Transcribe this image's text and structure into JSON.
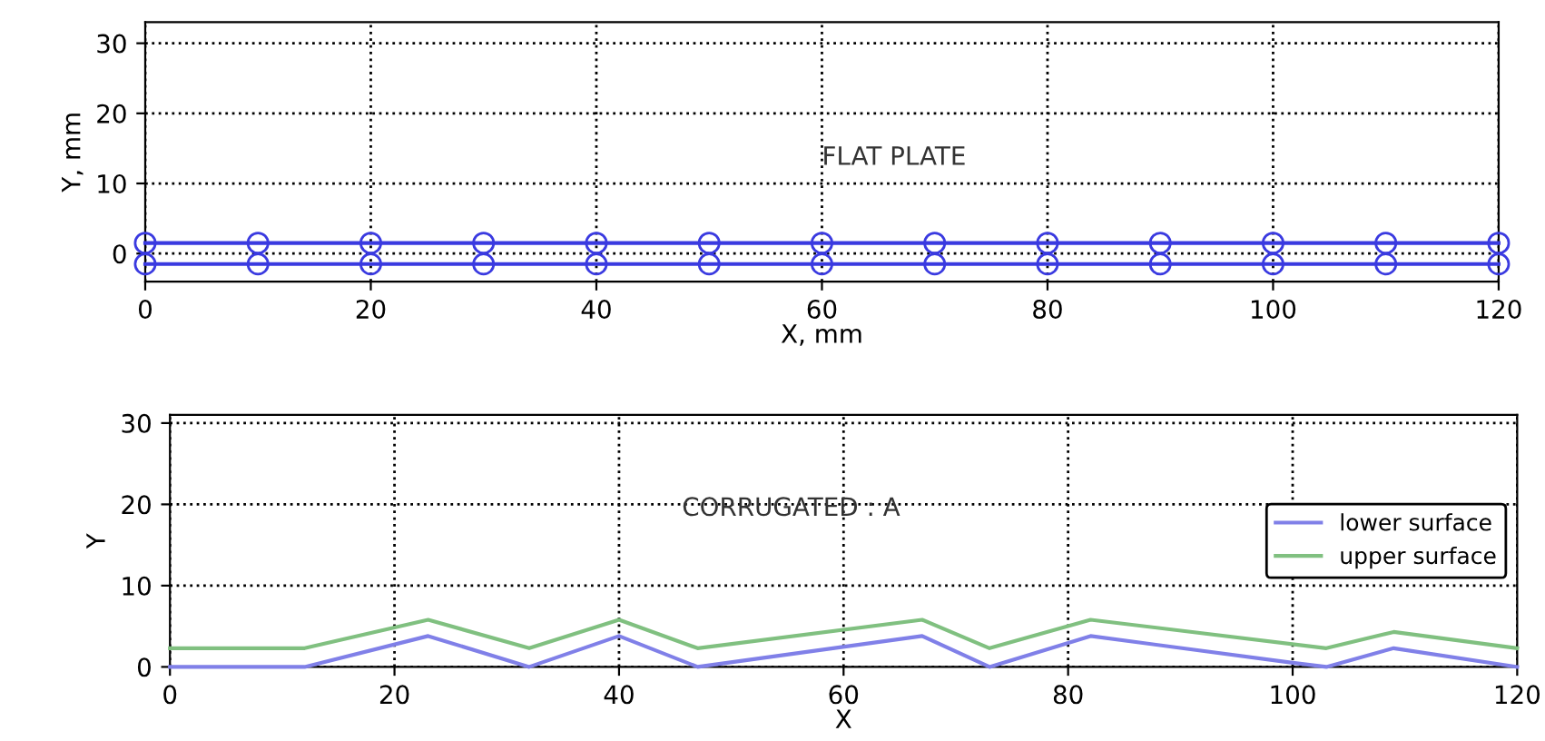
{
  "chart_data": [
    {
      "type": "line",
      "xlabel": "X, mm",
      "ylabel": "Y, mm",
      "annotations": [
        "FLAT PLATE"
      ],
      "x": [
        0,
        10,
        20,
        30,
        40,
        50,
        60,
        70,
        80,
        90,
        100,
        110,
        120
      ],
      "series": [
        {
          "color": "#3a3ae0",
          "values": [
            1.5,
            1.5,
            1.5,
            1.5,
            1.5,
            1.5,
            1.5,
            1.5,
            1.5,
            1.5,
            1.5,
            1.5,
            1.5
          ]
        },
        {
          "color": "#3a3ae0",
          "values": [
            -1.5,
            -1.5,
            -1.5,
            -1.5,
            -1.5,
            -1.5,
            -1.5,
            -1.5,
            -1.5,
            -1.5,
            -1.5,
            -1.5,
            -1.5
          ]
        }
      ],
      "xlim": [
        0,
        120
      ],
      "ylim": [
        -4,
        33
      ],
      "xticks": [
        0,
        20,
        40,
        60,
        80,
        100,
        120
      ],
      "yticks": [
        0,
        10,
        20,
        30
      ],
      "grid": true,
      "marker": "circle",
      "line_style": "solid",
      "legend": false
    },
    {
      "type": "line",
      "xlabel": "X",
      "ylabel": "Y",
      "annotations": [
        "CORRUGATED : A"
      ],
      "series": [
        {
          "name": "lower surface",
          "color": "#8080e8",
          "x": [
            0,
            12,
            23,
            32,
            40,
            47,
            67,
            73,
            82,
            100,
            103,
            109,
            120
          ],
          "values": [
            0,
            0,
            3.8,
            0,
            3.8,
            0,
            3.8,
            0,
            3.8,
            0.5,
            0,
            2.3,
            0
          ]
        },
        {
          "name": "upper surface",
          "color": "#80c080",
          "x": [
            0,
            12,
            23,
            32,
            40,
            47,
            67,
            73,
            82,
            103,
            109,
            120
          ],
          "values": [
            2.3,
            2.3,
            5.8,
            2.3,
            5.8,
            2.3,
            5.8,
            2.3,
            5.8,
            2.3,
            4.3,
            2.3
          ]
        }
      ],
      "xlim": [
        0,
        120
      ],
      "ylim": [
        0,
        31
      ],
      "xticks": [
        0,
        20,
        40,
        60,
        80,
        100,
        120
      ],
      "yticks": [
        0,
        10,
        20,
        30
      ],
      "grid": true,
      "line_style": "solid",
      "legend": "right"
    }
  ]
}
